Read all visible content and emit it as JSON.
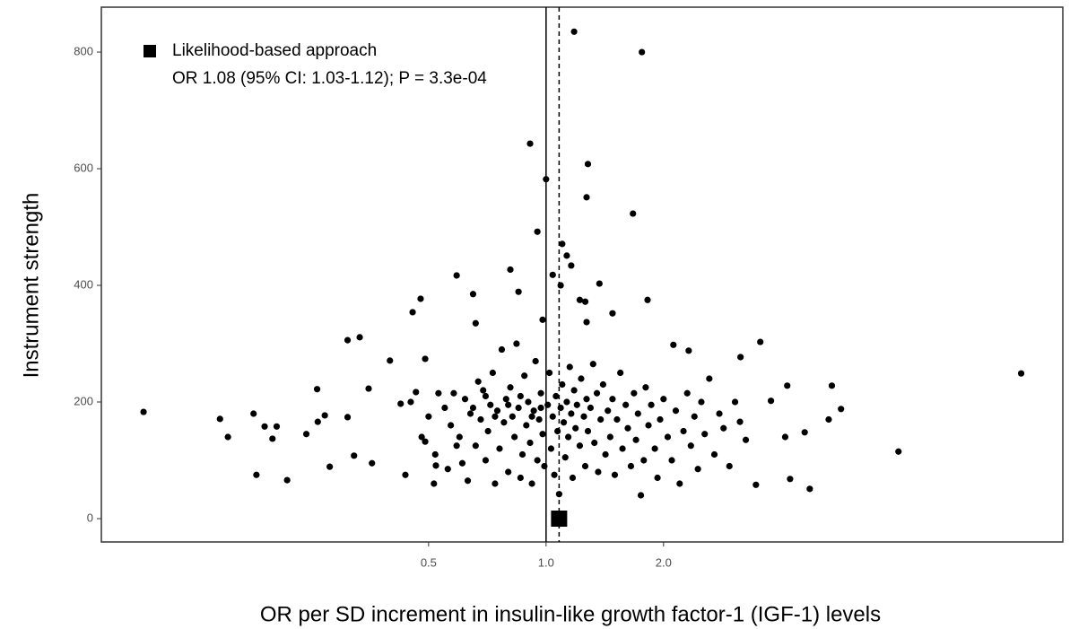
{
  "chart_data": {
    "type": "scatter",
    "xscale": "log",
    "x_label": "OR per SD increment in insulin-like growth factor-1 (IGF-1) levels",
    "y_label": "Instrument strength",
    "xlim": [
      0.0725,
      21.1
    ],
    "ylim": [
      -40,
      877
    ],
    "xticks": [
      0.5,
      {
        "value": 1,
        "label": "1.0"
      },
      {
        "value": 2,
        "label": "2.0"
      }
    ],
    "yticks": [
      0,
      200,
      400,
      600,
      800
    ],
    "color": "#000000",
    "reference_line": 1,
    "estimate": {
      "name": "Likelihood-based approach",
      "label": "OR 1.08 (95% CI: 1.03-1.12); P = 3.3e-04",
      "x": 1.08,
      "y": 0
    },
    "x": [
      0.093,
      0.146,
      0.153,
      0.178,
      0.181,
      0.19,
      0.199,
      0.204,
      0.217,
      0.243,
      0.259,
      0.26,
      0.271,
      0.279,
      0.31,
      0.333,
      0.31,
      0.322,
      0.351,
      0.358,
      0.398,
      0.424,
      0.436,
      0.455,
      0.477,
      0.49,
      0.464,
      0.49,
      0.516,
      0.522,
      1.18,
      1.76,
      0.91,
      1.0,
      1.28,
      1.27,
      1.67,
      0.95,
      1.1,
      1.13,
      1.16,
      0.59,
      0.81,
      0.65,
      0.85,
      1.04,
      1.09,
      1.37,
      1.22,
      1.82,
      1.26,
      0.66,
      0.98,
      1.48,
      1.27,
      3.54,
      2.12,
      2.32,
      16.5,
      8.0,
      3.15,
      4.74,
      4.22,
      3.45,
      5.4,
      5.7,
      5.3,
      4.6,
      4.1,
      4.15,
      3.77,
      3.14,
      0.55,
      0.57,
      0.58,
      0.6,
      0.61,
      0.62,
      0.63,
      0.64,
      0.66,
      0.67,
      0.68,
      0.7,
      0.7,
      0.71,
      0.72,
      0.73,
      0.74,
      0.75,
      0.76,
      0.77,
      0.78,
      0.79,
      0.8,
      0.81,
      0.82,
      0.83,
      0.84,
      0.85,
      0.86,
      0.87,
      0.88,
      0.89,
      0.9,
      0.91,
      0.92,
      0.93,
      0.94,
      0.95,
      0.96,
      0.97,
      0.98,
      0.99,
      1.01,
      1.02,
      1.03,
      1.04,
      1.05,
      1.06,
      1.07,
      1.08,
      1.09,
      1.1,
      1.11,
      1.12,
      1.13,
      1.14,
      1.15,
      1.16,
      1.17,
      1.18,
      1.19,
      1.2,
      1.22,
      1.23,
      1.25,
      1.26,
      1.27,
      1.28,
      1.3,
      1.32,
      1.33,
      1.35,
      1.36,
      1.38,
      1.4,
      1.42,
      1.44,
      1.46,
      1.48,
      1.5,
      1.52,
      1.55,
      1.57,
      1.6,
      1.62,
      1.65,
      1.68,
      1.7,
      1.72,
      1.75,
      1.78,
      1.8,
      1.83,
      1.86,
      1.9,
      1.93,
      1.96,
      2.0,
      2.05,
      2.1,
      2.15,
      2.2,
      2.25,
      2.3,
      2.35,
      2.4,
      2.45,
      2.5,
      2.55,
      2.62,
      2.7,
      2.78,
      2.85,
      2.95,
      3.05,
      3.25,
      0.45,
      0.48,
      0.52,
      0.5,
      0.53,
      0.56,
      0.59,
      0.65,
      0.69,
      0.74,
      0.8,
      0.86,
      0.92,
      0.97
    ],
    "values": [
      183,
      171,
      140,
      180,
      75,
      158,
      137,
      158,
      66,
      145,
      222,
      166,
      177,
      89,
      306,
      311,
      174,
      108,
      223,
      95,
      271,
      197,
      75,
      354,
      377,
      274,
      217,
      132,
      60,
      91,
      835,
      800,
      643,
      582,
      608,
      551,
      523,
      492,
      471,
      451,
      434,
      417,
      427,
      385,
      389,
      418,
      400,
      403,
      375,
      375,
      372,
      335,
      341,
      352,
      337,
      303,
      298,
      288,
      249,
      115,
      277,
      51,
      68,
      58,
      228,
      188,
      170,
      148,
      140,
      228,
      202,
      166,
      190,
      160,
      215,
      140,
      95,
      205,
      65,
      180,
      125,
      235,
      170,
      210,
      100,
      150,
      195,
      250,
      60,
      185,
      120,
      290,
      165,
      205,
      80,
      225,
      175,
      140,
      300,
      190,
      70,
      110,
      245,
      160,
      200,
      130,
      60,
      185,
      270,
      100,
      170,
      215,
      145,
      90,
      195,
      250,
      120,
      175,
      75,
      210,
      150,
      42,
      190,
      230,
      165,
      105,
      200,
      140,
      260,
      180,
      70,
      220,
      155,
      195,
      125,
      240,
      175,
      90,
      205,
      150,
      190,
      265,
      130,
      215,
      80,
      170,
      230,
      110,
      185,
      140,
      205,
      75,
      170,
      250,
      120,
      195,
      155,
      90,
      215,
      135,
      180,
      40,
      100,
      225,
      160,
      195,
      120,
      70,
      170,
      205,
      140,
      100,
      185,
      60,
      150,
      215,
      125,
      175,
      85,
      200,
      145,
      240,
      110,
      180,
      155,
      90,
      200,
      135,
      200,
      140,
      110,
      175,
      215,
      85,
      125,
      190,
      220,
      175,
      195,
      210,
      175,
      190
    ]
  }
}
